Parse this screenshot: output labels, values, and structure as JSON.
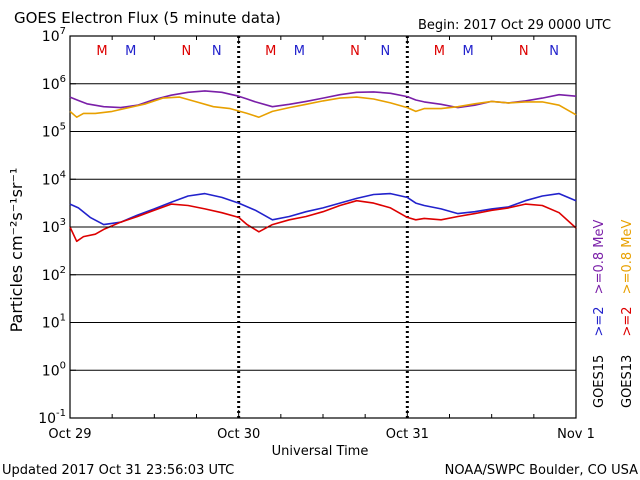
{
  "chart_data": {
    "type": "line",
    "title": "GOES Electron Flux (5 minute data)",
    "begin_label": "Begin: 2017 Oct 29 0000 UTC",
    "xlabel": "Universal Time",
    "ylabel": "Particles cm⁻²s⁻¹sr⁻¹",
    "yscale": "log",
    "ylim_exponent": [
      -1,
      7
    ],
    "y_tick_labels": [
      {
        "base": "10",
        "exp": "7",
        "value": 7
      },
      {
        "base": "10",
        "exp": "6",
        "value": 6
      },
      {
        "base": "10",
        "exp": "5",
        "value": 5
      },
      {
        "base": "10",
        "exp": "4",
        "value": 4
      },
      {
        "base": "10",
        "exp": "3",
        "value": 3
      },
      {
        "base": "10",
        "exp": "2",
        "value": 2
      },
      {
        "base": "10",
        "exp": "1",
        "value": 1
      },
      {
        "base": "10",
        "exp": "0",
        "value": 0
      },
      {
        "base": "10",
        "exp": "-1",
        "value": -1
      }
    ],
    "x_tick_labels": [
      "Oct 29",
      "Oct 30",
      "Oct 31",
      "Nov 1"
    ],
    "x_range_days": [
      0,
      3
    ],
    "dashed_threshold_log": 3,
    "markers": [
      {
        "label": "M",
        "day": 0.19,
        "color": "#dd0000"
      },
      {
        "label": "M",
        "day": 0.36,
        "color": "#2222cc"
      },
      {
        "label": "N",
        "day": 0.69,
        "color": "#dd0000"
      },
      {
        "label": "N",
        "day": 0.87,
        "color": "#2222cc"
      },
      {
        "label": "M",
        "day": 1.19,
        "color": "#dd0000"
      },
      {
        "label": "M",
        "day": 1.36,
        "color": "#2222cc"
      },
      {
        "label": "N",
        "day": 1.69,
        "color": "#dd0000"
      },
      {
        "label": "N",
        "day": 1.87,
        "color": "#2222cc"
      },
      {
        "label": "M",
        "day": 2.19,
        "color": "#dd0000"
      },
      {
        "label": "M",
        "day": 2.36,
        "color": "#2222cc"
      },
      {
        "label": "N",
        "day": 2.69,
        "color": "#dd0000"
      },
      {
        "label": "N",
        "day": 2.87,
        "color": "#2222cc"
      }
    ],
    "legend_goes15": {
      "label": "GOES15",
      "low": ">=0.8 MeV",
      "high": ">=2",
      "low_color": "#7a1fa8",
      "high_color": "#2222cc"
    },
    "legend_goes13": {
      "label": "GOES13",
      "low": ">=0.8 MeV",
      "high": ">=2",
      "low_color": "#e8a000",
      "high_color": "#dd0000"
    },
    "series": [
      {
        "name": "GOES15 >=0.8 MeV",
        "color": "#7a1fa8",
        "x": [
          0,
          0.05,
          0.1,
          0.2,
          0.3,
          0.4,
          0.5,
          0.6,
          0.7,
          0.8,
          0.9,
          1.0,
          1.05,
          1.1,
          1.2,
          1.3,
          1.4,
          1.5,
          1.6,
          1.7,
          1.8,
          1.9,
          2.0,
          2.05,
          2.1,
          2.2,
          2.3,
          2.4,
          2.5,
          2.6,
          2.7,
          2.8,
          2.9,
          3.0
        ],
        "y": [
          5.72,
          5.65,
          5.58,
          5.52,
          5.5,
          5.55,
          5.67,
          5.76,
          5.82,
          5.85,
          5.82,
          5.74,
          5.68,
          5.62,
          5.52,
          5.57,
          5.63,
          5.7,
          5.77,
          5.82,
          5.83,
          5.8,
          5.73,
          5.66,
          5.62,
          5.57,
          5.5,
          5.55,
          5.63,
          5.6,
          5.64,
          5.7,
          5.77,
          5.74
        ]
      },
      {
        "name": "GOES13 >=0.8 MeV",
        "color": "#e8a000",
        "x": [
          0,
          0.04,
          0.08,
          0.15,
          0.25,
          0.35,
          0.45,
          0.55,
          0.65,
          0.75,
          0.85,
          0.95,
          1.05,
          1.12,
          1.2,
          1.3,
          1.4,
          1.5,
          1.6,
          1.7,
          1.8,
          1.9,
          2.0,
          2.05,
          2.1,
          2.2,
          2.3,
          2.4,
          2.5,
          2.6,
          2.7,
          2.8,
          2.9,
          3.0
        ],
        "y": [
          5.42,
          5.3,
          5.38,
          5.38,
          5.42,
          5.5,
          5.58,
          5.7,
          5.72,
          5.62,
          5.52,
          5.48,
          5.38,
          5.3,
          5.42,
          5.5,
          5.57,
          5.64,
          5.7,
          5.72,
          5.68,
          5.6,
          5.5,
          5.42,
          5.48,
          5.48,
          5.52,
          5.58,
          5.63,
          5.6,
          5.62,
          5.62,
          5.55,
          5.35
        ]
      },
      {
        "name": "GOES15 >=2 MeV",
        "color": "#2222cc",
        "x": [
          0,
          0.05,
          0.12,
          0.2,
          0.3,
          0.4,
          0.5,
          0.6,
          0.7,
          0.8,
          0.9,
          1.0,
          1.1,
          1.2,
          1.3,
          1.4,
          1.5,
          1.6,
          1.7,
          1.8,
          1.9,
          2.0,
          2.05,
          2.1,
          2.2,
          2.3,
          2.4,
          2.5,
          2.6,
          2.7,
          2.8,
          2.9,
          3.0
        ],
        "y": [
          3.48,
          3.4,
          3.2,
          3.05,
          3.1,
          3.25,
          3.38,
          3.52,
          3.65,
          3.7,
          3.62,
          3.5,
          3.35,
          3.15,
          3.22,
          3.32,
          3.4,
          3.5,
          3.6,
          3.68,
          3.7,
          3.62,
          3.5,
          3.45,
          3.38,
          3.28,
          3.32,
          3.38,
          3.42,
          3.55,
          3.65,
          3.7,
          3.55
        ]
      },
      {
        "name": "GOES13 >=2 MeV",
        "color": "#dd0000",
        "x": [
          0,
          0.04,
          0.08,
          0.15,
          0.2,
          0.3,
          0.4,
          0.5,
          0.6,
          0.7,
          0.8,
          0.9,
          1.0,
          1.05,
          1.12,
          1.2,
          1.3,
          1.4,
          1.5,
          1.6,
          1.7,
          1.8,
          1.9,
          2.0,
          2.05,
          2.1,
          2.2,
          2.3,
          2.4,
          2.5,
          2.6,
          2.7,
          2.8,
          2.9,
          3.0
        ],
        "y": [
          3.0,
          2.7,
          2.8,
          2.85,
          2.95,
          3.1,
          3.22,
          3.35,
          3.48,
          3.45,
          3.38,
          3.3,
          3.2,
          3.05,
          2.9,
          3.05,
          3.15,
          3.22,
          3.32,
          3.45,
          3.55,
          3.5,
          3.4,
          3.2,
          3.15,
          3.18,
          3.15,
          3.22,
          3.28,
          3.35,
          3.4,
          3.48,
          3.45,
          3.3,
          2.98
        ]
      }
    ]
  },
  "footer": {
    "updated": "Updated 2017 Oct 31 23:56:03 UTC",
    "credit": "NOAA/SWPC Boulder, CO USA"
  }
}
